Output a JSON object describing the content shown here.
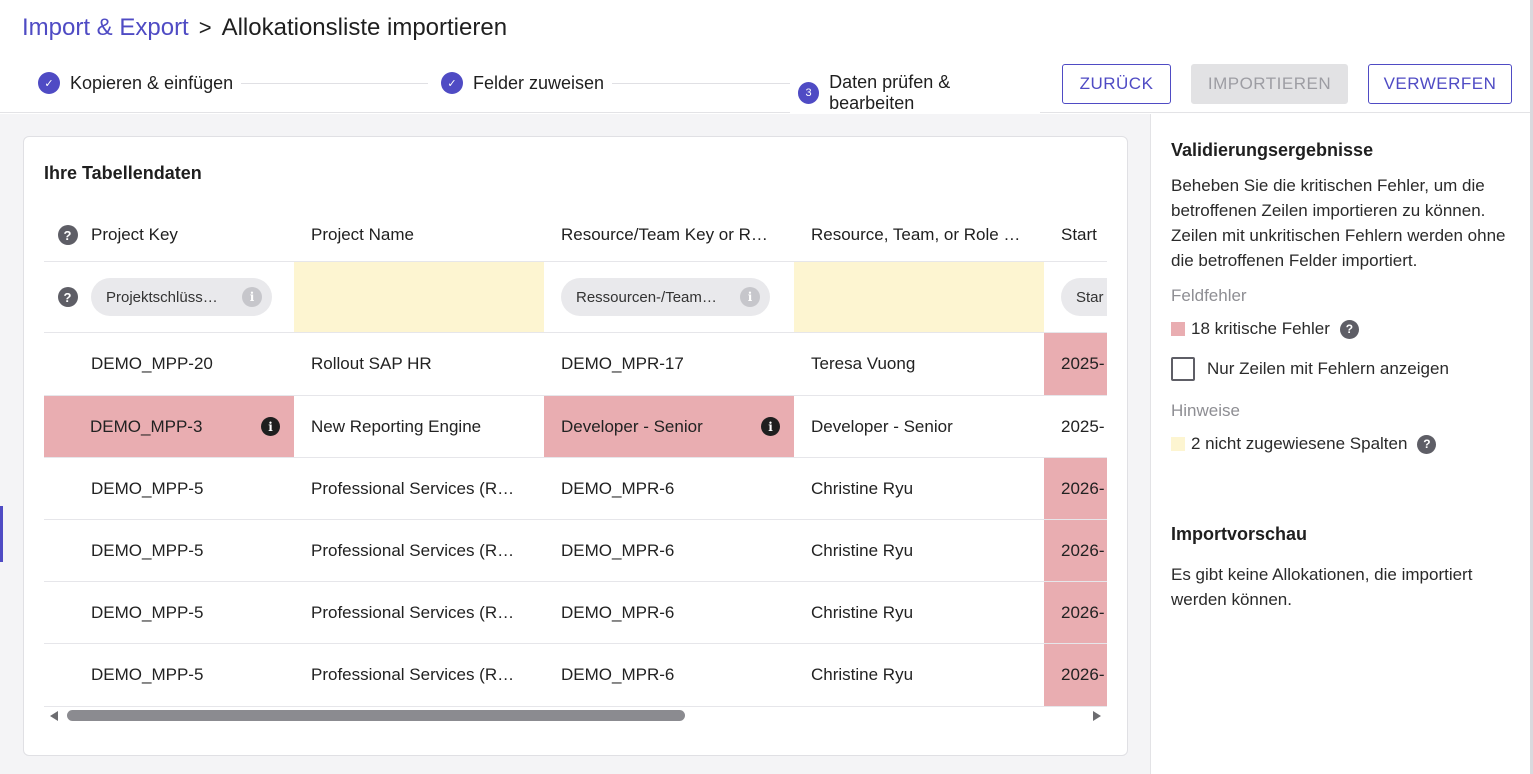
{
  "breadcrumb": {
    "parent": "Import & Export",
    "separator": ">",
    "current": "Allokationsliste importieren"
  },
  "stepper": {
    "steps": [
      {
        "label": "Kopieren & einfügen",
        "state": "done",
        "marker": "✓"
      },
      {
        "label": "Felder zuweisen",
        "state": "done",
        "marker": "✓"
      },
      {
        "label": "Daten prüfen & bearbeiten",
        "state": "active",
        "marker": "3"
      }
    ]
  },
  "buttons": {
    "back": "ZURÜCK",
    "import": "IMPORTIEREN",
    "discard": "VERWERFEN"
  },
  "table": {
    "title": "Ihre Tabellendaten",
    "help_icon": "?",
    "columns": [
      "Project Key",
      "Project Name",
      "Resource/Team Key or R…",
      "Resource, Team, or Role …",
      "Start"
    ],
    "mapping": [
      "Projektschlüss…",
      "",
      "Ressourcen-/Team…",
      "",
      "Star"
    ],
    "rows": [
      [
        "DEMO_MPP-20",
        "Rollout SAP HR",
        "DEMO_MPR-17",
        "Teresa Vuong",
        "2025-"
      ],
      [
        "DEMO_MPP-3",
        "New Reporting Engine",
        "Developer - Senior",
        "Developer - Senior",
        "2025-"
      ],
      [
        "DEMO_MPP-5",
        "Professional Services (R…",
        "DEMO_MPR-6",
        "Christine Ryu",
        "2026-"
      ],
      [
        "DEMO_MPP-5",
        "Professional Services (R…",
        "DEMO_MPR-6",
        "Christine Ryu",
        "2026-"
      ],
      [
        "DEMO_MPP-5",
        "Professional Services (R…",
        "DEMO_MPR-6",
        "Christine Ryu",
        "2026-"
      ],
      [
        "DEMO_MPP-5",
        "Professional Services (R…",
        "DEMO_MPR-6",
        "Christine Ryu",
        "2026-"
      ]
    ]
  },
  "validation": {
    "title": "Validierungsergebnisse",
    "description": "Beheben Sie die kritischen Fehler, um die betroffenen Zeilen importieren zu können. Zeilen mit unkritischen Fehlern werden ohne die betroffenen Felder importiert.",
    "field_errors_label": "Feldfehler",
    "critical_errors": "18 kritische Fehler",
    "only_errors_checkbox": "Nur Zeilen mit Fehlern anzeigen",
    "hints_label": "Hinweise",
    "unassigned_columns": "2 nicht zugewiesene Spalten"
  },
  "preview": {
    "title": "Importvorschau",
    "text": "Es gibt keine Allokationen, die importiert werden können."
  },
  "colors": {
    "accent": "#4f4bc4",
    "error": "#e9adb1",
    "hint": "#fdf5d1"
  }
}
